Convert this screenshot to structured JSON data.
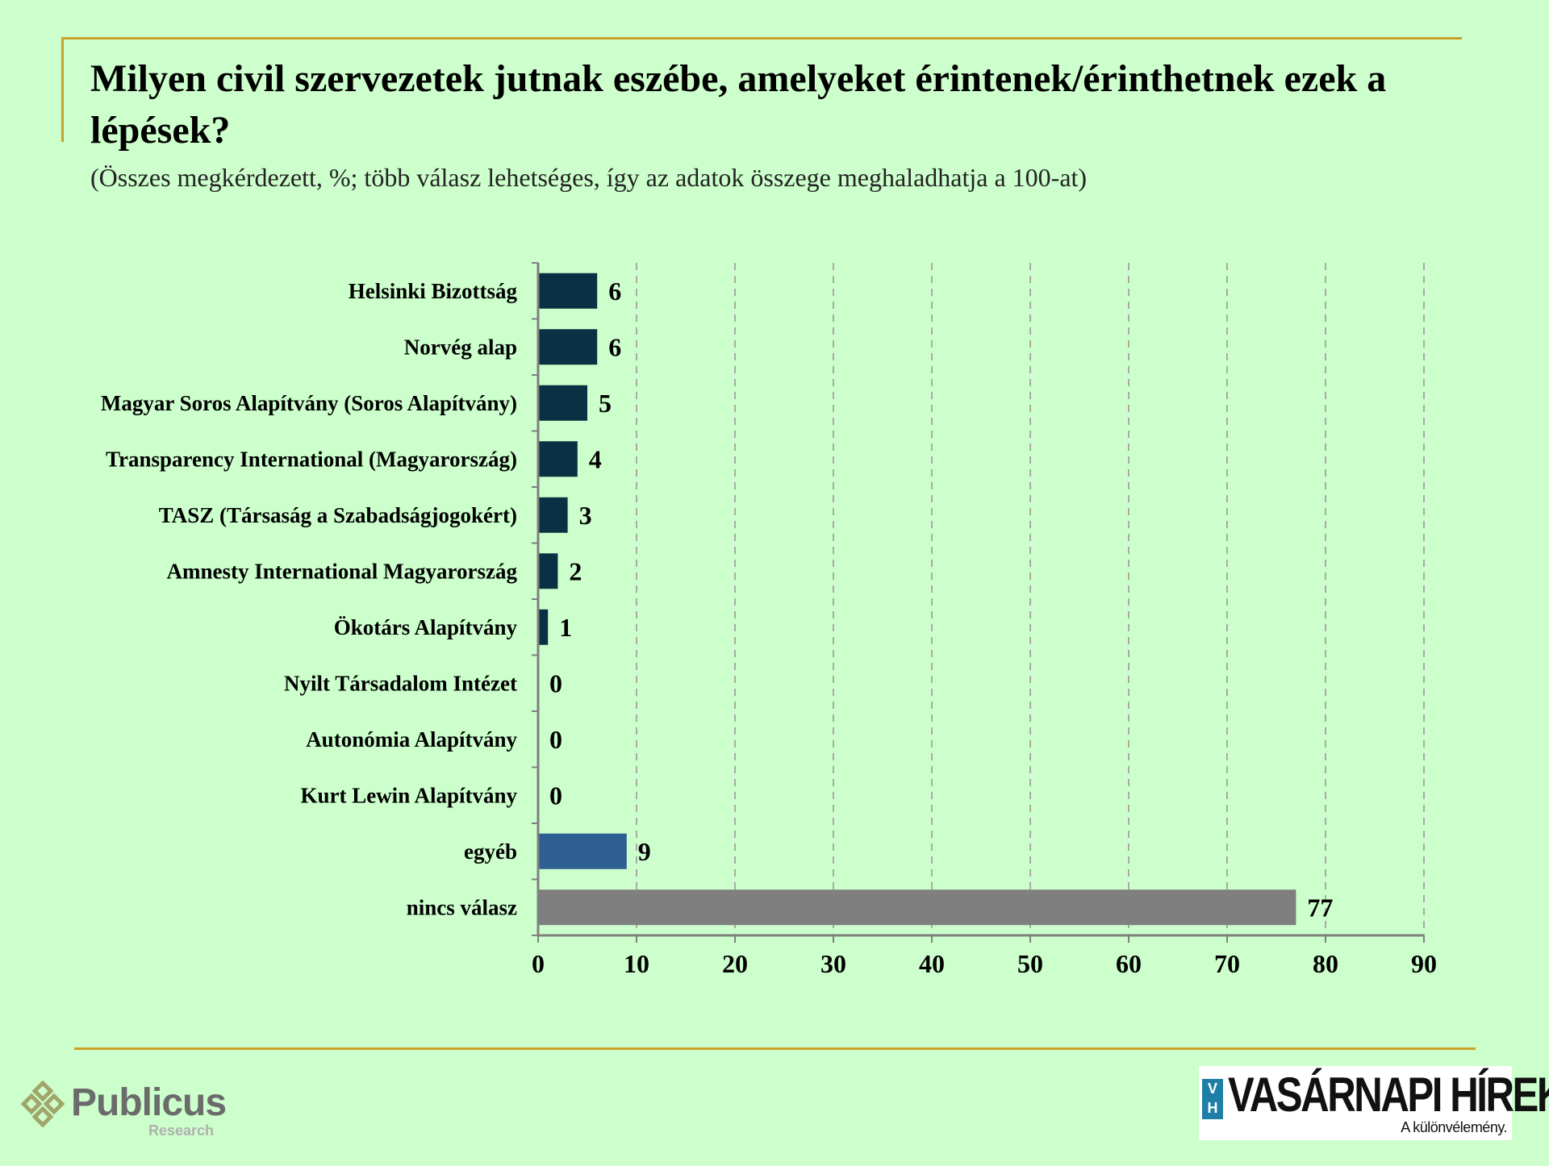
{
  "title": "Milyen civil szervezetek jutnak eszébe, amelyeket érintenek/érinthetnek ezek a lépések?",
  "subtitle": "(Összes megkérdezett, %; több válasz lehetséges, így az adatok összege meghaladhatja a 100-at)",
  "chart_data": {
    "type": "bar",
    "orientation": "horizontal",
    "categories": [
      "Helsinki Bizottság",
      "Norvég alap",
      "Magyar Soros Alapítvány (Soros Alapítvány)",
      "Transparency International (Magyarország)",
      "TASZ (Társaság a Szabadságjogokért)",
      "Amnesty International Magyarország",
      "Ökotárs Alapítvány",
      "Nyilt Társadalom Intézet",
      "Autonómia Alapítvány",
      "Kurt Lewin Alapítvány",
      "egyéb",
      "nincs válasz"
    ],
    "values": [
      6,
      6,
      5,
      4,
      3,
      2,
      1,
      0,
      0,
      0,
      9,
      77
    ],
    "bar_colors": [
      "#0b3043",
      "#0b3043",
      "#0b3043",
      "#0b3043",
      "#0b3043",
      "#0b3043",
      "#0b3043",
      "#0b3043",
      "#0b3043",
      "#0b3043",
      "#2e5f93",
      "#7f7f7f"
    ],
    "xlim": [
      0,
      90
    ],
    "xticks": [
      0,
      10,
      20,
      30,
      40,
      50,
      60,
      70,
      80,
      90
    ],
    "grid": "vertical dashed",
    "data_labels": true
  },
  "logos": {
    "left_name": "Publicus",
    "left_sub": "Research",
    "right_badge_top": "V",
    "right_badge_bottom": "H",
    "right_name": "VASÁRNAPI HÍREK",
    "right_tagline": "A különvélemény."
  }
}
